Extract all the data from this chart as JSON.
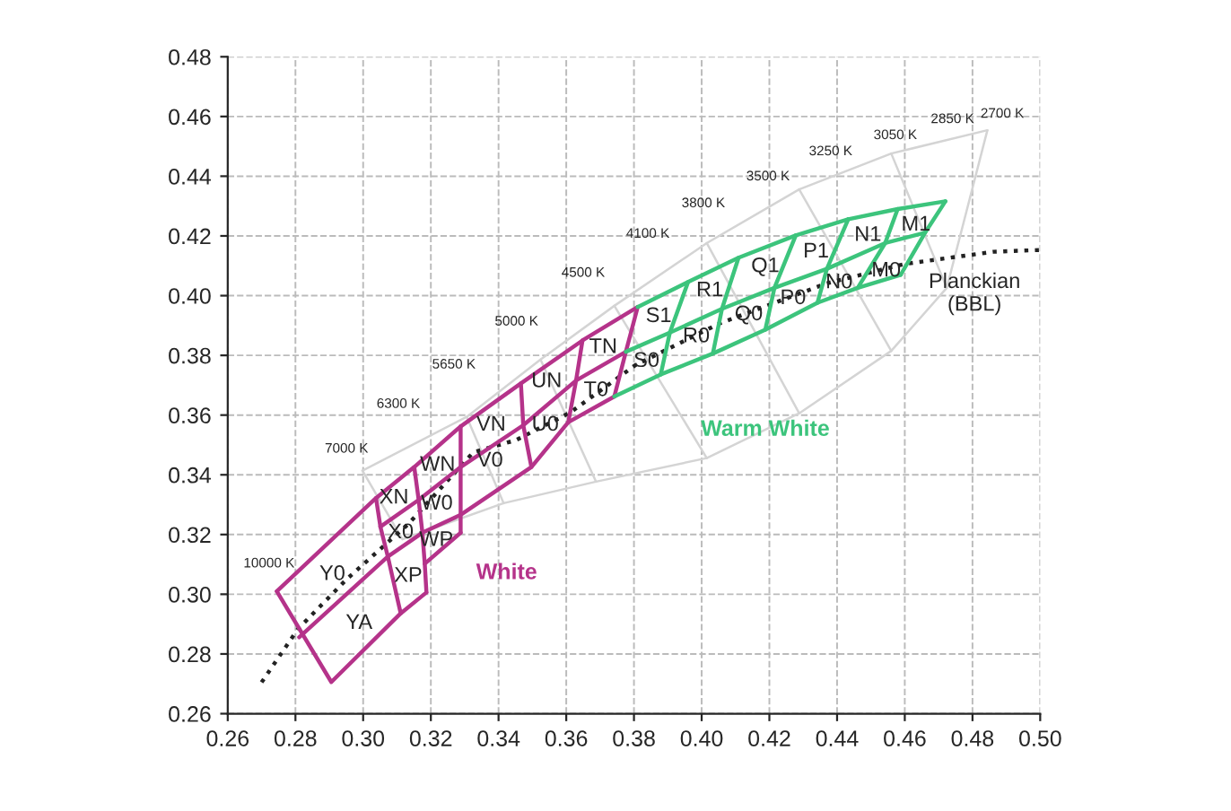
{
  "chart_data": {
    "type": "line",
    "xlim": [
      0.26,
      0.5
    ],
    "ylim": [
      0.26,
      0.48
    ],
    "xticks": [
      {
        "value": 0.26,
        "label": "0.26"
      },
      {
        "value": 0.28,
        "label": "0.28"
      },
      {
        "value": 0.3,
        "label": "0.30"
      },
      {
        "value": 0.32,
        "label": "0.32"
      },
      {
        "value": 0.34,
        "label": "0.34"
      },
      {
        "value": 0.36,
        "label": "0.36"
      },
      {
        "value": 0.38,
        "label": "0.38"
      },
      {
        "value": 0.4,
        "label": "0.40"
      },
      {
        "value": 0.42,
        "label": "0.42"
      },
      {
        "value": 0.44,
        "label": "0.44"
      },
      {
        "value": 0.46,
        "label": "0.46"
      },
      {
        "value": 0.48,
        "label": "0.48"
      },
      {
        "value": 0.5,
        "label": "0.50"
      }
    ],
    "yticks": [
      {
        "value": 0.26,
        "label": "0.26"
      },
      {
        "value": 0.28,
        "label": "0.28"
      },
      {
        "value": 0.3,
        "label": "0.30"
      },
      {
        "value": 0.32,
        "label": "0.32"
      },
      {
        "value": 0.34,
        "label": "0.34"
      },
      {
        "value": 0.36,
        "label": "0.36"
      },
      {
        "value": 0.38,
        "label": "0.38"
      },
      {
        "value": 0.4,
        "label": "0.40"
      },
      {
        "value": 0.42,
        "label": "0.42"
      },
      {
        "value": 0.44,
        "label": "0.44"
      },
      {
        "value": 0.46,
        "label": "0.46"
      },
      {
        "value": 0.48,
        "label": "0.48"
      }
    ],
    "grid": true,
    "legend": false,
    "marker": "none",
    "series": [
      {
        "color": "#d4d4d4",
        "line_style": "solid",
        "x": [
          0.2998,
          0.3306,
          0.3524,
          0.3742,
          0.4015,
          0.4288,
          0.456,
          0.4844
        ],
        "values": [
          0.3414,
          0.3594,
          0.3786,
          0.3966,
          0.4176,
          0.4356,
          0.4476,
          0.4554
        ]
      },
      {
        "color": "#d4d4d4",
        "line_style": "solid",
        "x": [
          0.2998,
          0.3116,
          0.3415,
          0.3688,
          0.4015,
          0.4288,
          0.456,
          0.4724,
          0.4844
        ],
        "values": [
          0.3414,
          0.3184,
          0.3305,
          0.3377,
          0.3456,
          0.3606,
          0.3815,
          0.4026,
          0.4554
        ]
      },
      {
        "color": "#d4d4d4",
        "line_style": "solid",
        "x": [
          0.3306,
          0.3415
        ],
        "values": [
          0.3594,
          0.3305
        ]
      },
      {
        "color": "#d4d4d4",
        "line_style": "solid",
        "x": [
          0.3524,
          0.3688
        ],
        "values": [
          0.3786,
          0.3377
        ]
      },
      {
        "color": "#d4d4d4",
        "line_style": "solid",
        "x": [
          0.3742,
          0.4015
        ],
        "values": [
          0.3966,
          0.3456
        ]
      },
      {
        "color": "#d4d4d4",
        "line_style": "solid",
        "x": [
          0.4015,
          0.4288
        ],
        "values": [
          0.4176,
          0.3606
        ]
      },
      {
        "color": "#d4d4d4",
        "line_style": "solid",
        "x": [
          0.4288,
          0.456
        ],
        "values": [
          0.4356,
          0.3815
        ]
      },
      {
        "color": "#d4d4d4",
        "line_style": "solid",
        "x": [
          0.456,
          0.4724
        ],
        "values": [
          0.4476,
          0.4026
        ]
      },
      {
        "color": "#222222",
        "line_style": "dotted",
        "x": [
          0.27,
          0.2807,
          0.2951,
          0.3135,
          0.3325,
          0.3451,
          0.3611,
          0.3805,
          0.4053,
          0.4369,
          0.4599,
          0.4862,
          0.5
        ],
        "values": [
          0.2705,
          0.2883,
          0.305,
          0.3237,
          0.3475,
          0.3516,
          0.3608,
          0.3768,
          0.3907,
          0.4041,
          0.4106,
          0.4147,
          0.4153
        ]
      },
      {
        "color": "#b5338a",
        "line_style": "solid",
        "x": [
          0.2745,
          0.3038,
          0.3151,
          0.3288,
          0.3466,
          0.3648,
          0.3811
        ],
        "values": [
          0.301,
          0.3322,
          0.3426,
          0.3562,
          0.3706,
          0.385,
          0.3962
        ]
      },
      {
        "color": "#b5338a",
        "line_style": "solid",
        "x": [
          0.2745,
          0.2906,
          0.3111,
          0.3187
        ],
        "values": [
          0.301,
          0.2706,
          0.2936,
          0.3006
        ]
      },
      {
        "color": "#b5338a",
        "line_style": "solid",
        "x": [
          0.3038,
          0.3051,
          0.3073,
          0.3111
        ],
        "values": [
          0.3322,
          0.3226,
          0.3126,
          0.2936
        ]
      },
      {
        "color": "#b5338a",
        "line_style": "solid",
        "x": [
          0.3151,
          0.3164,
          0.3175,
          0.3182,
          0.3187
        ],
        "values": [
          0.3426,
          0.3316,
          0.3206,
          0.3102,
          0.3006
        ]
      },
      {
        "color": "#b5338a",
        "line_style": "solid",
        "x": [
          0.3182,
          0.3288
        ],
        "values": [
          0.3102,
          0.3206
        ]
      },
      {
        "color": "#b5338a",
        "line_style": "solid",
        "x": [
          0.3288,
          0.3288,
          0.3288,
          0.3288
        ],
        "values": [
          0.3562,
          0.3426,
          0.3266,
          0.3206
        ]
      },
      {
        "color": "#b5338a",
        "line_style": "solid",
        "x": [
          0.3051,
          0.3164,
          0.3288,
          0.3473,
          0.3629,
          0.3776
        ],
        "values": [
          0.3226,
          0.3316,
          0.3426,
          0.3566,
          0.3716,
          0.3812
        ]
      },
      {
        "color": "#b5338a",
        "line_style": "solid",
        "x": [
          0.2811,
          0.3073,
          0.3175,
          0.3288,
          0.3497,
          0.3606,
          0.3742
        ],
        "values": [
          0.2856,
          0.3126,
          0.3206,
          0.3266,
          0.3426,
          0.3576,
          0.3662
        ]
      },
      {
        "color": "#b5338a",
        "line_style": "solid",
        "x": [
          0.3466,
          0.3473,
          0.3497
        ],
        "values": [
          0.3706,
          0.3566,
          0.3426
        ]
      },
      {
        "color": "#b5338a",
        "line_style": "solid",
        "x": [
          0.3648,
          0.3629,
          0.3606
        ],
        "values": [
          0.385,
          0.3716,
          0.3576
        ]
      },
      {
        "color": "#b5338a",
        "line_style": "solid",
        "x": [
          0.3811,
          0.3776,
          0.3742
        ],
        "values": [
          0.3962,
          0.3812,
          0.3662
        ]
      },
      {
        "color": "#3cc47c",
        "line_style": "solid",
        "x": [
          0.3811,
          0.396,
          0.4109,
          0.4278,
          0.4433,
          0.4579,
          0.472
        ],
        "values": [
          0.3962,
          0.4046,
          0.4127,
          0.4202,
          0.4256,
          0.429,
          0.4316
        ]
      },
      {
        "color": "#3cc47c",
        "line_style": "solid",
        "x": [
          0.3776,
          0.3906,
          0.406,
          0.4215,
          0.437,
          0.4542,
          0.466
        ],
        "values": [
          0.3812,
          0.3876,
          0.3956,
          0.4026,
          0.409,
          0.4176,
          0.4211
        ]
      },
      {
        "color": "#3cc47c",
        "line_style": "solid",
        "x": [
          0.3742,
          0.3879,
          0.4033,
          0.4188,
          0.4342,
          0.4461,
          0.4588
        ],
        "values": [
          0.3662,
          0.3736,
          0.3806,
          0.3886,
          0.3976,
          0.4026,
          0.407
        ]
      },
      {
        "color": "#3cc47c",
        "line_style": "solid",
        "x": [
          0.396,
          0.3906,
          0.3879
        ],
        "values": [
          0.4046,
          0.3876,
          0.3736
        ]
      },
      {
        "color": "#3cc47c",
        "line_style": "solid",
        "x": [
          0.4109,
          0.406,
          0.4033
        ],
        "values": [
          0.4127,
          0.3956,
          0.3806
        ]
      },
      {
        "color": "#3cc47c",
        "line_style": "solid",
        "x": [
          0.4278,
          0.4215,
          0.4188
        ],
        "values": [
          0.4202,
          0.4026,
          0.3886
        ]
      },
      {
        "color": "#3cc47c",
        "line_style": "solid",
        "x": [
          0.4433,
          0.437,
          0.4342
        ],
        "values": [
          0.4256,
          0.409,
          0.3976
        ]
      },
      {
        "color": "#3cc47c",
        "line_style": "solid",
        "x": [
          0.4579,
          0.4542,
          0.4461
        ],
        "values": [
          0.429,
          0.4176,
          0.4026
        ]
      },
      {
        "color": "#3cc47c",
        "line_style": "solid",
        "x": [
          0.472,
          0.466,
          0.4588
        ],
        "values": [
          0.4316,
          0.4211,
          0.407
        ]
      }
    ],
    "annotations": [
      "10000 K",
      "7000 K",
      "6300 K",
      "5650 K",
      "5000 K",
      "4500 K",
      "4100 K",
      "3800 K",
      "3500 K",
      "3250 K",
      "3050 K",
      "2850 K",
      "2700 K",
      "Y0",
      "YA",
      "XN",
      "X0",
      "XP",
      "WN",
      "W0",
      "WP",
      "VN",
      "V0",
      "UN",
      "U0",
      "TN",
      "T0",
      "S1",
      "S0",
      "R1",
      "R0",
      "Q1",
      "Q0",
      "P1",
      "P0",
      "N1",
      "N0",
      "M1",
      "M0",
      "White",
      "Warm White",
      "Planckian\n(BBL)"
    ]
  }
}
